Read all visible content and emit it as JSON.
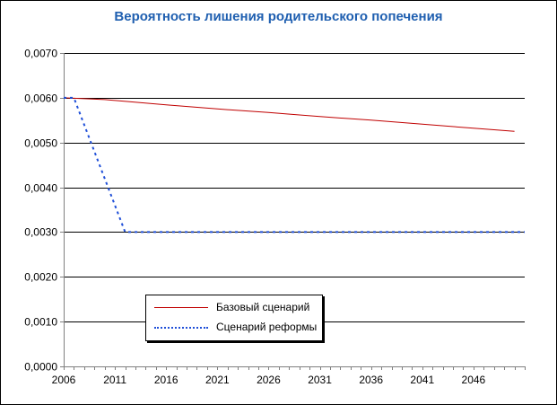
{
  "chart_data": {
    "type": "line",
    "title": "Вероятность лишения родительского попечения",
    "xlabel": "",
    "ylabel": "",
    "x_ticks": [
      "2006",
      "2011",
      "2016",
      "2021",
      "2026",
      "2031",
      "2036",
      "2041",
      "2046"
    ],
    "xlim": [
      2006,
      2051
    ],
    "ylim": [
      0,
      0.007
    ],
    "y_ticks": [
      "0,0000",
      "0,0010",
      "0,0020",
      "0,0030",
      "0,0040",
      "0,0050",
      "0,0060",
      "0,0070"
    ],
    "y_tick_values": [
      0,
      0.001,
      0.002,
      0.003,
      0.004,
      0.005,
      0.006,
      0.007
    ],
    "grid": "horizontal",
    "legend_position": "bottom-left",
    "series": [
      {
        "name": "Базовый сценарий",
        "color": "#c00000",
        "style": "solid",
        "x": [
          2006,
          2010,
          2016,
          2021,
          2026,
          2031,
          2036,
          2041,
          2046,
          2050
        ],
        "y": [
          0.006,
          0.00596,
          0.00584,
          0.00575,
          0.00567,
          0.00558,
          0.0055,
          0.00541,
          0.00532,
          0.00525
        ]
      },
      {
        "name": "Сценарий реформы",
        "color": "#1f4fd8",
        "style": "dotted",
        "x": [
          2006,
          2007,
          2012,
          2051
        ],
        "y": [
          0.006,
          0.006,
          0.003,
          0.003
        ]
      }
    ]
  }
}
